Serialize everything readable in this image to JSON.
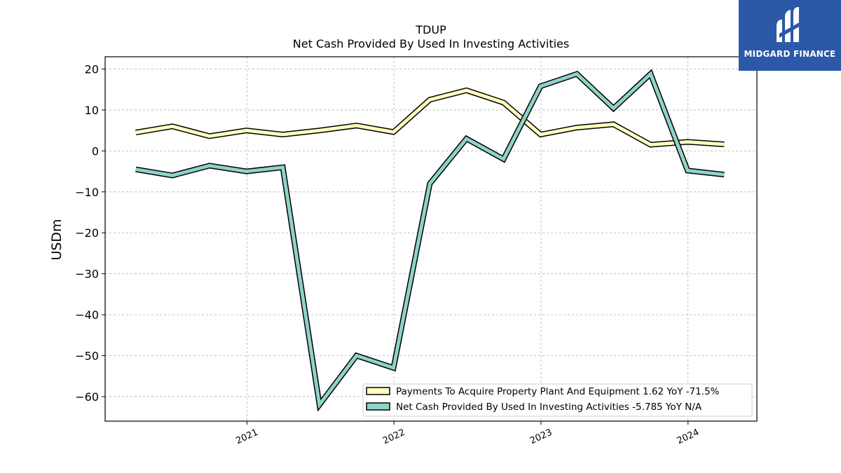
{
  "brand": {
    "name": "MIDGARD FINANCE",
    "icon": "midgard-logo-icon",
    "color": "#2c58a8"
  },
  "chart_data": {
    "type": "line",
    "title": "TDUP",
    "subtitle": "Net Cash Provided By Used In Investing Activities",
    "xlabel": "",
    "ylabel": "USDm",
    "x": [
      "2020-03-31",
      "2020-06-30",
      "2020-09-30",
      "2020-12-31",
      "2021-03-31",
      "2021-06-30",
      "2021-09-30",
      "2021-12-31",
      "2022-03-31",
      "2022-06-30",
      "2022-09-30",
      "2022-12-31",
      "2023-03-31",
      "2023-06-30",
      "2023-09-30",
      "2023-12-31",
      "2024-03-31"
    ],
    "x_ticks": [
      "2021",
      "2022",
      "2023",
      "2024"
    ],
    "y_ticks": [
      "20",
      "10",
      "0",
      "−10",
      "−20",
      "−30",
      "−40",
      "−50",
      "−60"
    ],
    "ylim": [
      -66,
      23
    ],
    "xlim": [
      "2020-01-15",
      "2024-06-20"
    ],
    "grid": true,
    "legend_position": "lower-right",
    "series": [
      {
        "name": "Payments To Acquire Property Plant And Equipment",
        "legend_label": "Payments To Acquire Property Plant And Equipment  1.62 YoY -71.5%",
        "color": "#ffffbf",
        "values": [
          4.5,
          6.0,
          3.6,
          5.0,
          4.0,
          5.0,
          6.2,
          4.6,
          12.5,
          14.8,
          11.8,
          4.0,
          5.7,
          6.5,
          1.5,
          2.2,
          1.6
        ]
      },
      {
        "name": "Net Cash Provided By Used In Investing Activities",
        "legend_label": "Net Cash Provided By Used In Investing Activities  -5.785 YoY N/A",
        "color": "#8dd3c7",
        "values": [
          -4.5,
          -6.0,
          -3.6,
          -5.0,
          -4.0,
          -62.0,
          -50.0,
          -53.0,
          -8.0,
          3.0,
          -2.0,
          15.8,
          18.8,
          10.4,
          18.8,
          -4.8,
          -5.785
        ]
      }
    ]
  }
}
